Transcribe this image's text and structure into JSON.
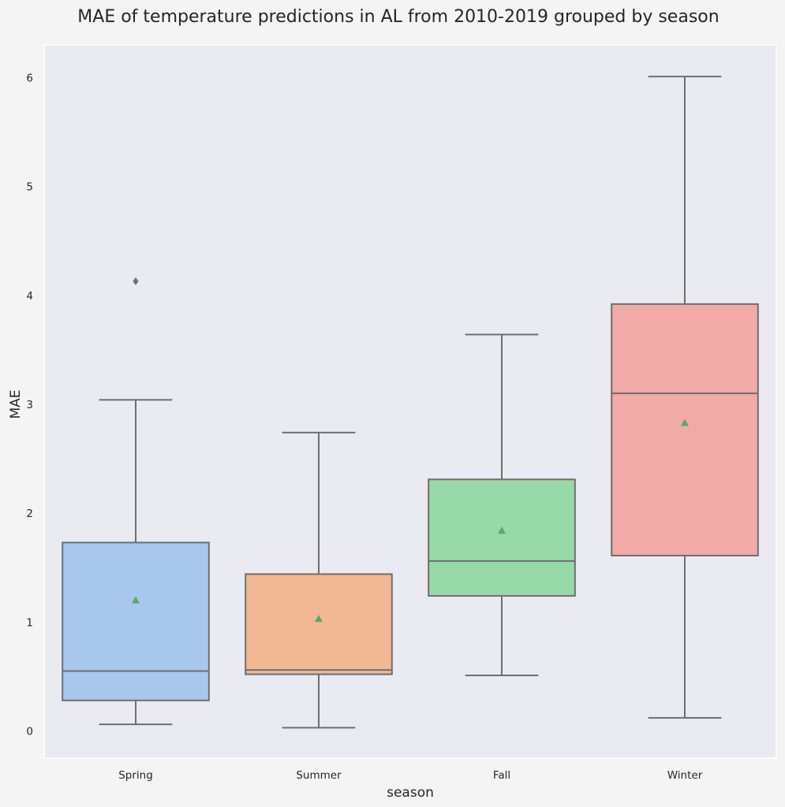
{
  "chart_data": {
    "type": "box",
    "title": "MAE of temperature predictions in AL from 2010-2019 grouped by season",
    "xlabel": "season",
    "ylabel": "MAE",
    "ylim": [
      -0.25,
      6.3
    ],
    "yticks": [
      0,
      1,
      2,
      3,
      4,
      5,
      6
    ],
    "grid": false,
    "categories": [
      "Spring",
      "Summer",
      "Fall",
      "Winter"
    ],
    "series": [
      {
        "category": "Spring",
        "whisker_low": 0.06,
        "q1": 0.28,
        "median": 0.55,
        "q3": 1.73,
        "whisker_high": 3.04,
        "mean": 1.2,
        "outliers": [
          4.13
        ],
        "color": "#a7c8ec"
      },
      {
        "category": "Summer",
        "whisker_low": 0.03,
        "q1": 0.52,
        "median": 0.56,
        "q3": 1.44,
        "whisker_high": 2.74,
        "mean": 1.03,
        "outliers": [],
        "color": "#f1b893"
      },
      {
        "category": "Fall",
        "whisker_low": 0.51,
        "q1": 1.24,
        "median": 1.56,
        "q3": 2.31,
        "whisker_high": 3.64,
        "mean": 1.84,
        "outliers": [],
        "color": "#98d9a8"
      },
      {
        "category": "Winter",
        "whisker_low": 0.12,
        "q1": 1.61,
        "median": 3.1,
        "q3": 3.92,
        "whisker_high": 6.01,
        "mean": 2.83,
        "outliers": [],
        "color": "#f1aaa8"
      }
    ],
    "colors": {
      "background": "#f4f4f4",
      "plot_background": "#eaeaf2",
      "line": "#6e6e6e",
      "mean_marker": "#5ea56b",
      "text": "#262626"
    }
  }
}
